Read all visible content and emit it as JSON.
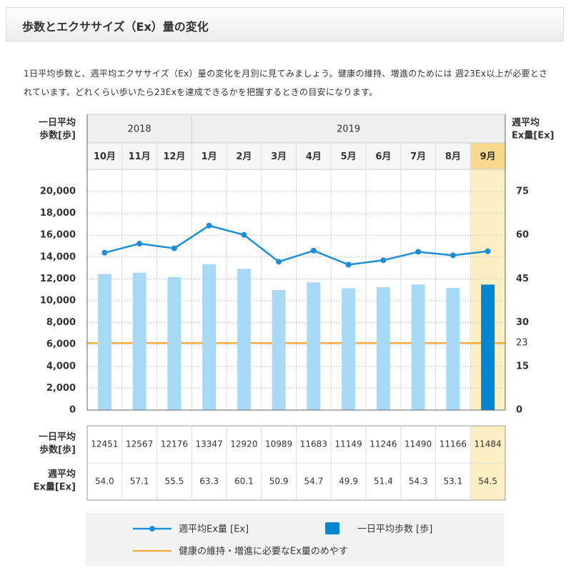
{
  "header": {
    "title": "歩数とエクササイズ（Ex）量の変化"
  },
  "description": "1日平均歩数と、週平均エクササイズ（Ex）量の変化を月別に見てみましょう。健康の維持、増進のためには 週23Ex以上が必要とされています。どれくらい歩いたら23Exを達成できるかを把握するときの目安になります。",
  "chart_data": {
    "type": "bar_line",
    "y_label": [
      "一日平均",
      "歩数[歩]"
    ],
    "y2_label": [
      "週平均",
      "Ex量[Ex]"
    ],
    "x_years": [
      "2018",
      null,
      null,
      "2019",
      null,
      null,
      null,
      null,
      null,
      null,
      null,
      null
    ],
    "categories": [
      "10月",
      "11月",
      "12月",
      "1月",
      "2月",
      "3月",
      "4月",
      "5月",
      "6月",
      "7月",
      "8月",
      "9月"
    ],
    "highlight": "9月",
    "series": [
      {
        "name": "一日平均歩数 [歩]",
        "color": "#a8d9f6",
        "highlight_color": "#0086d1",
        "values": [
          12451,
          12567,
          12176,
          13347,
          12920,
          10989,
          11683,
          11149,
          11246,
          11490,
          11166,
          11484
        ]
      },
      {
        "name": "週平均Ex量 [Ex]",
        "color": "#1b8fd8",
        "axis": "y2",
        "values": [
          54.0,
          57.1,
          55.5,
          63.3,
          60.1,
          50.9,
          54.7,
          49.9,
          51.4,
          54.3,
          53.1,
          54.5
        ],
        "value_labels": [
          "54.0",
          "57.1",
          "55.5",
          "63.3",
          "60.1",
          "50.9",
          "54.7",
          "49.9",
          "51.4",
          "54.3",
          "53.1",
          "54.5"
        ]
      }
    ],
    "ylim": [
      0,
      20000
    ],
    "yticks": [
      0,
      {
        "value": 2000,
        "label": "2,000"
      },
      {
        "value": 4000,
        "label": "4,000"
      },
      {
        "value": 6000,
        "label": "6,000"
      },
      {
        "value": 8000,
        "label": "8,000"
      },
      {
        "value": 10000,
        "label": "10,000"
      },
      {
        "value": 12000,
        "label": "12,000"
      },
      {
        "value": 14000,
        "label": "14,000"
      },
      {
        "value": 16000,
        "label": "16,000"
      },
      {
        "value": 18000,
        "label": "18,000"
      },
      {
        "value": 20000,
        "label": "20,000"
      }
    ],
    "y2lim": [
      0,
      75
    ],
    "y2ticks": [
      0,
      15,
      30,
      45,
      60,
      75
    ],
    "grid": true,
    "reference_line": {
      "value": 23,
      "axis": "y2",
      "color": "#f5a020",
      "name": "健康の維持・増進に必要なEx量のめやす"
    }
  }
}
